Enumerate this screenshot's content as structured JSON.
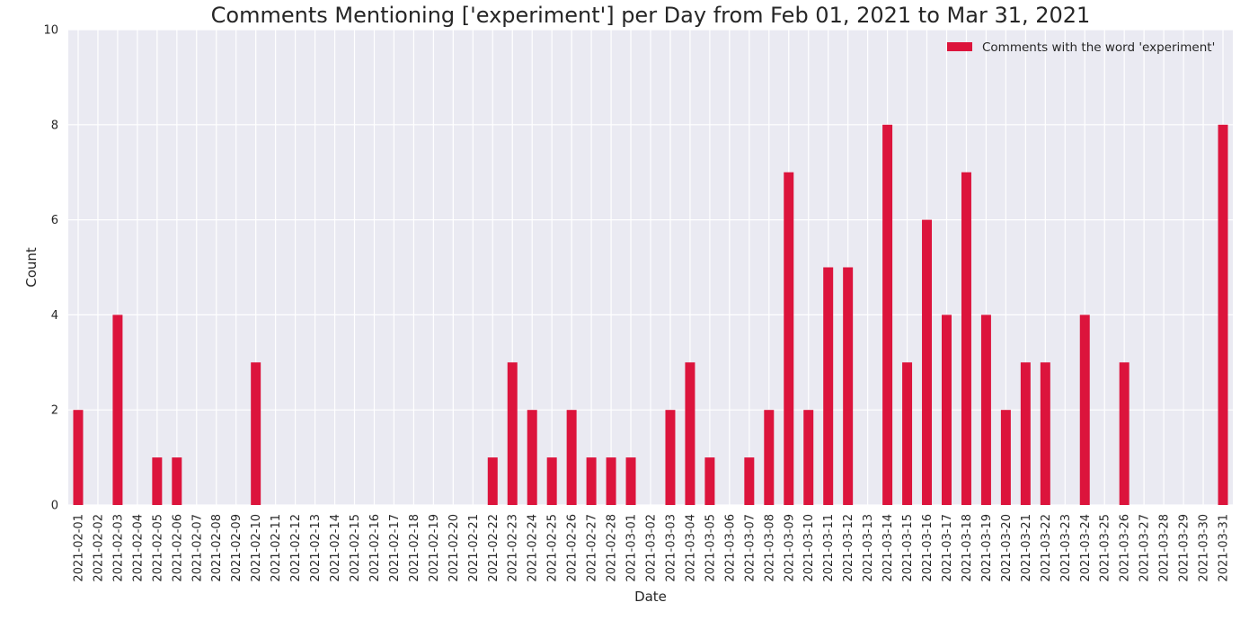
{
  "chart_data": {
    "type": "bar",
    "title": "Comments Mentioning ['experiment'] per Day from Feb 01, 2021 to Mar 31, 2021",
    "xlabel": "Date",
    "ylabel": "Count",
    "ylim": [
      0,
      10
    ],
    "yticks": [
      0,
      2,
      4,
      6,
      8,
      10
    ],
    "grid": true,
    "legend_position": "top-right",
    "bar_color": "#dc143c",
    "background_color": "#eaeaf2",
    "grid_color": "#ffffff",
    "categories": [
      "2021-02-01",
      "2021-02-02",
      "2021-02-03",
      "2021-02-04",
      "2021-02-05",
      "2021-02-06",
      "2021-02-07",
      "2021-02-08",
      "2021-02-09",
      "2021-02-10",
      "2021-02-11",
      "2021-02-12",
      "2021-02-13",
      "2021-02-14",
      "2021-02-15",
      "2021-02-16",
      "2021-02-17",
      "2021-02-18",
      "2021-02-19",
      "2021-02-20",
      "2021-02-21",
      "2021-02-22",
      "2021-02-23",
      "2021-02-24",
      "2021-02-25",
      "2021-02-26",
      "2021-02-27",
      "2021-02-28",
      "2021-03-01",
      "2021-03-02",
      "2021-03-03",
      "2021-03-04",
      "2021-03-05",
      "2021-03-06",
      "2021-03-07",
      "2021-03-08",
      "2021-03-09",
      "2021-03-10",
      "2021-03-11",
      "2021-03-12",
      "2021-03-13",
      "2021-03-14",
      "2021-03-15",
      "2021-03-16",
      "2021-03-17",
      "2021-03-18",
      "2021-03-19",
      "2021-03-20",
      "2021-03-21",
      "2021-03-22",
      "2021-03-23",
      "2021-03-24",
      "2021-03-25",
      "2021-03-26",
      "2021-03-27",
      "2021-03-28",
      "2021-03-29",
      "2021-03-30",
      "2021-03-31"
    ],
    "series": [
      {
        "name": "Comments with the word 'experiment'",
        "values": [
          2,
          0,
          4,
          0,
          1,
          1,
          0,
          0,
          0,
          3,
          0,
          0,
          0,
          0,
          0,
          0,
          0,
          0,
          0,
          0,
          0,
          1,
          3,
          2,
          1,
          2,
          1,
          1,
          1,
          0,
          2,
          3,
          1,
          0,
          1,
          2,
          7,
          2,
          5,
          5,
          0,
          8,
          3,
          6,
          4,
          7,
          4,
          2,
          3,
          3,
          0,
          4,
          0,
          3,
          0,
          0,
          0,
          0,
          8
        ]
      }
    ]
  }
}
